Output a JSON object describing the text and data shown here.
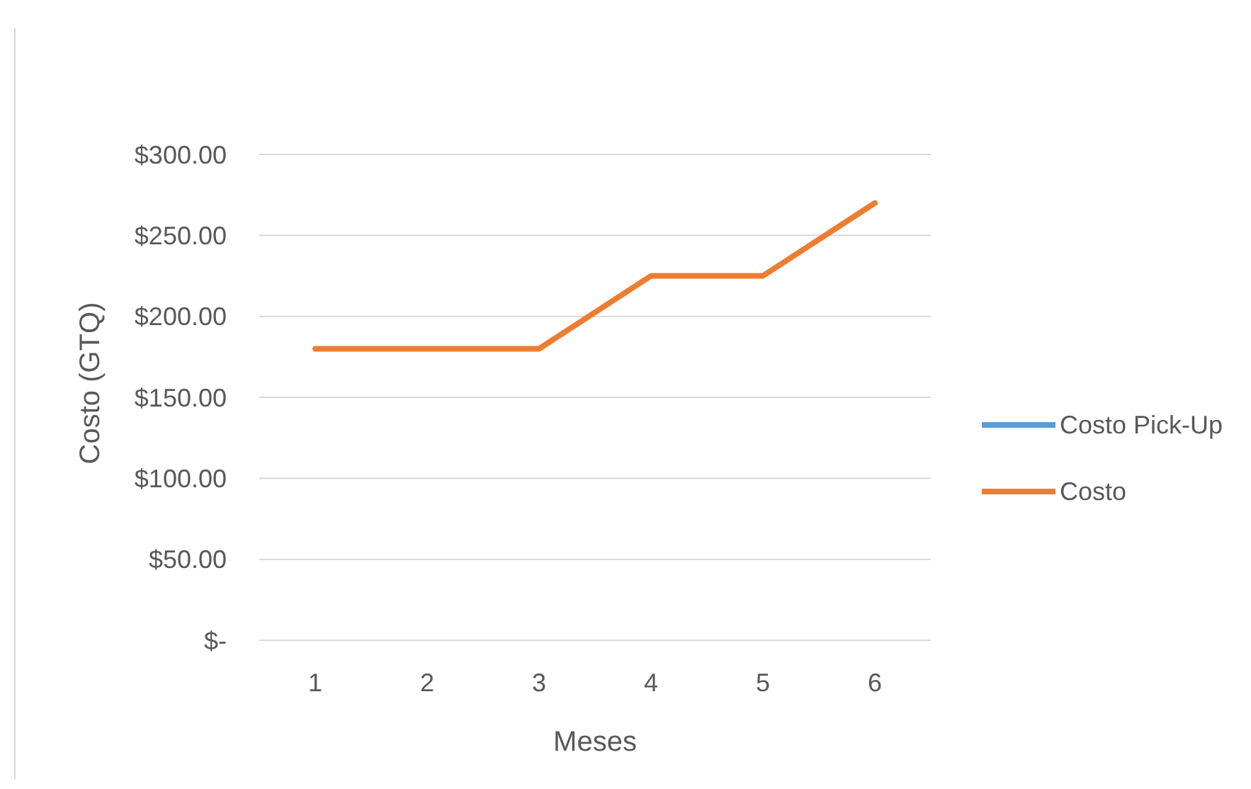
{
  "chart_data": {
    "type": "line",
    "xlabel": "Meses",
    "ylabel": "Costo (GTQ)",
    "categories": [
      "1",
      "2",
      "3",
      "4",
      "5",
      "6"
    ],
    "series": [
      {
        "name": "Costo Pick-Up",
        "color": "#5b9bd5",
        "values": [
          null,
          null,
          null,
          null,
          null,
          null
        ]
      },
      {
        "name": "Costo",
        "color": "#ed7d31",
        "values": [
          180,
          180,
          180,
          225,
          225,
          270
        ]
      }
    ],
    "ylim": [
      0,
      300
    ],
    "yticks": [
      {
        "value": 0,
        "label": "$-"
      },
      {
        "value": 50,
        "label": "$50.00"
      },
      {
        "value": 100,
        "label": "$100.00"
      },
      {
        "value": 150,
        "label": "$150.00"
      },
      {
        "value": 200,
        "label": "$200.00"
      },
      {
        "value": 250,
        "label": "$250.00"
      },
      {
        "value": 300,
        "label": "$300.00"
      }
    ],
    "grid": "y",
    "legend": "right",
    "marker": "none",
    "line_style": "solid"
  }
}
